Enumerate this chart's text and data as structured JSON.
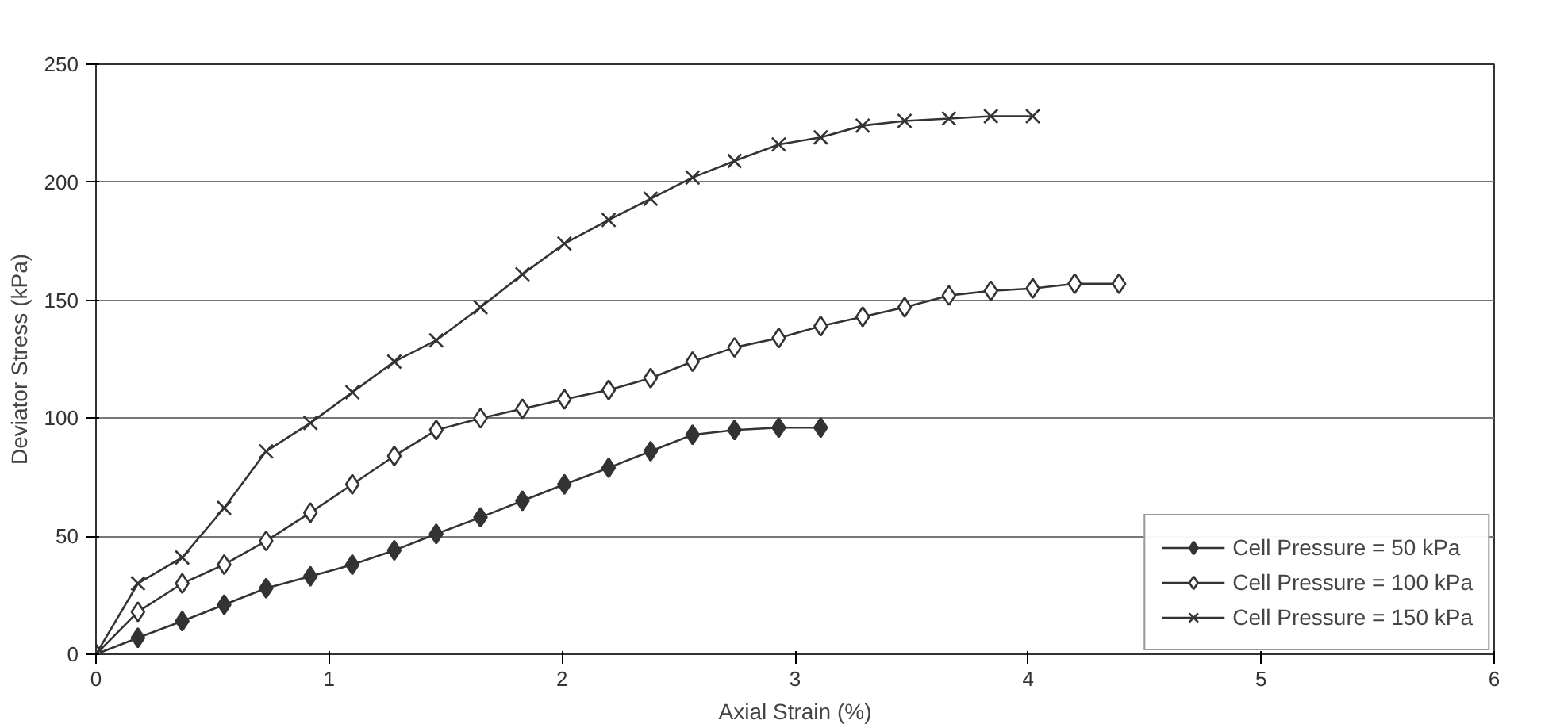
{
  "chart_data": {
    "type": "line",
    "xlabel": "Axial Strain (%)",
    "ylabel": "Deviator Stress (kPa)",
    "xlim": [
      0,
      6
    ],
    "xticks": [
      0,
      1,
      2,
      3,
      4,
      5,
      6
    ],
    "ylim": [
      0,
      250
    ],
    "yticks": [
      0,
      50,
      100,
      150,
      200,
      250
    ],
    "grid": "y",
    "legend": "bottom right",
    "line_style": "solid",
    "series": [
      {
        "name": "Cell Pressure = 50 kPa",
        "color": "#333333",
        "marker": "diamond",
        "x": [
          0,
          0.18,
          0.37,
          0.55,
          0.73,
          0.92,
          1.1,
          1.28,
          1.46,
          1.65,
          1.83,
          2.01,
          2.2,
          2.38,
          2.56,
          2.74,
          2.93,
          3.11
        ],
        "values": [
          0,
          7,
          14,
          21,
          28,
          33,
          38,
          44,
          51,
          58,
          65,
          72,
          79,
          86,
          93,
          95,
          96,
          96
        ]
      },
      {
        "name": "Cell Pressure = 100 kPa",
        "color": "#333333",
        "marker": "diamond_open",
        "x": [
          0,
          0.18,
          0.37,
          0.55,
          0.73,
          0.92,
          1.1,
          1.28,
          1.46,
          1.65,
          1.83,
          2.01,
          2.2,
          2.38,
          2.56,
          2.74,
          2.93,
          3.11,
          3.29,
          3.47,
          3.66,
          3.84,
          4.02,
          4.2,
          4.39
        ],
        "values": [
          0,
          18,
          30,
          38,
          48,
          60,
          72,
          84,
          95,
          100,
          104,
          108,
          112,
          117,
          124,
          130,
          134,
          139,
          143,
          147,
          152,
          154,
          155,
          157,
          157
        ]
      },
      {
        "name": "Cell Pressure = 150 kPa",
        "color": "#333333",
        "marker": "x",
        "x": [
          0,
          0.18,
          0.37,
          0.55,
          0.73,
          0.92,
          1.1,
          1.28,
          1.46,
          1.65,
          1.83,
          2.01,
          2.2,
          2.38,
          2.56,
          2.74,
          2.93,
          3.11,
          3.29,
          3.47,
          3.66,
          3.84,
          4.02
        ],
        "values": [
          0,
          30,
          41,
          62,
          86,
          98,
          111,
          124,
          133,
          147,
          161,
          174,
          184,
          193,
          202,
          209,
          216,
          219,
          224,
          226,
          227,
          228,
          228
        ]
      }
    ]
  }
}
